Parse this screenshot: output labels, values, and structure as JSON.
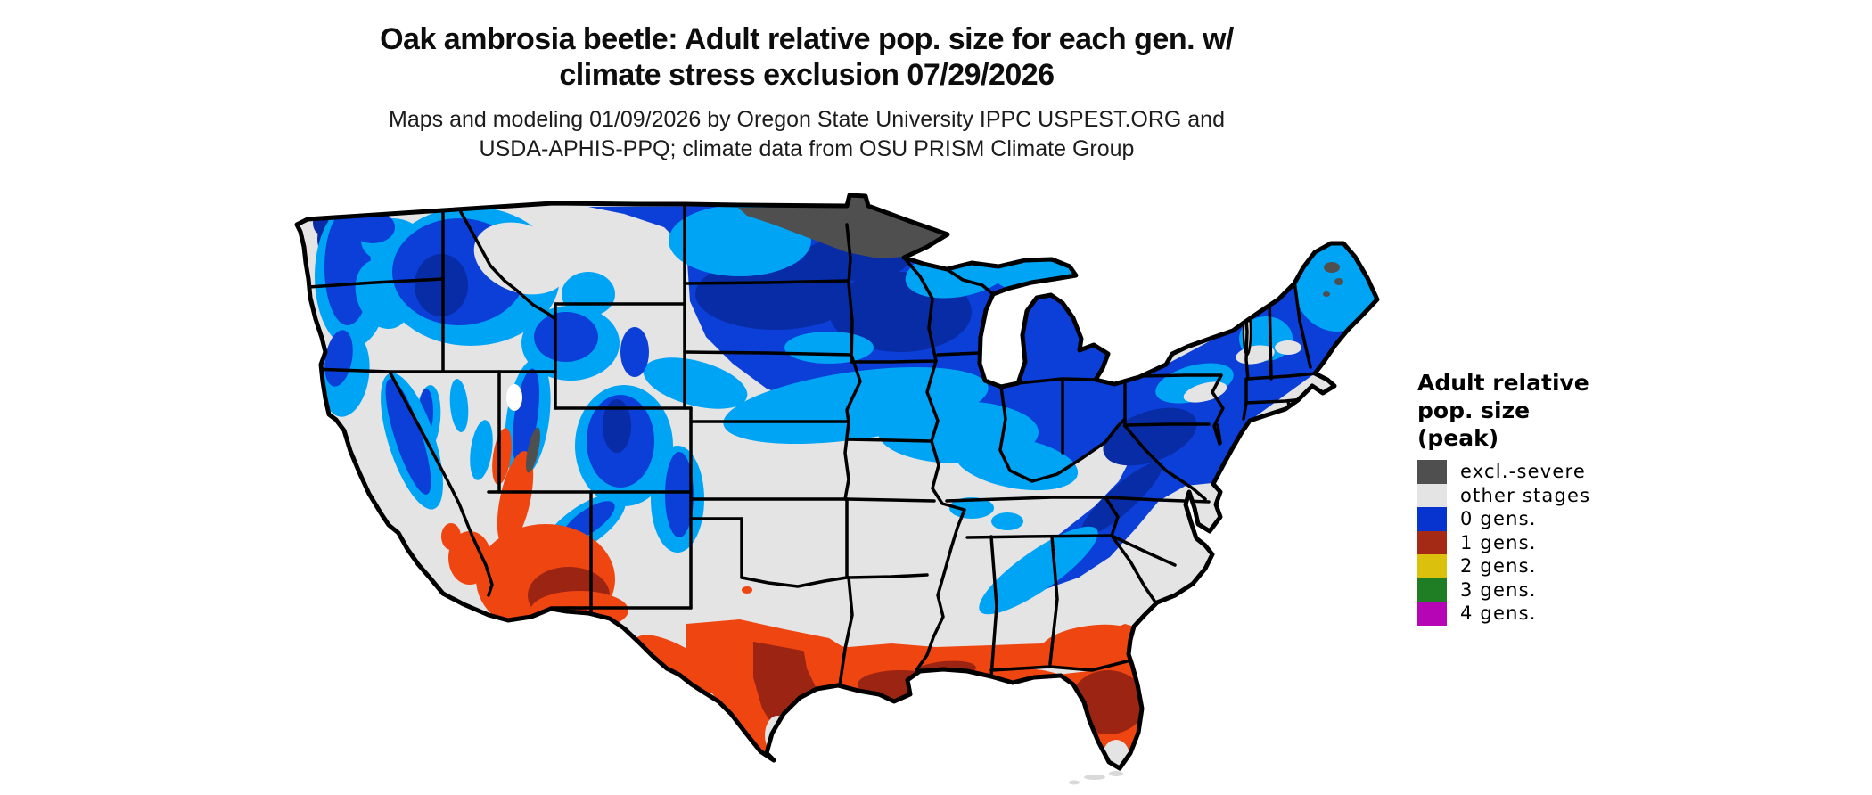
{
  "header": {
    "title_line1": "Oak ambrosia beetle: Adult relative pop. size for each gen. w/",
    "title_line2": "climate stress exclusion 07/29/2026",
    "subtitle_line1": "Maps and modeling 01/09/2026 by Oregon State University IPPC USPEST.ORG and",
    "subtitle_line2": "USDA-APHIS-PPQ; climate data from OSU PRISM Climate Group"
  },
  "legend": {
    "title_line1": "Adult relative",
    "title_line2": "pop. size",
    "title_line3": "(peak)",
    "items": [
      {
        "key": "excl-severe",
        "label": "excl.-severe",
        "color": "#4F4F4F"
      },
      {
        "key": "other-stages",
        "label": "other stages",
        "color": "#E4E4E4"
      },
      {
        "key": "gen-0",
        "label": "0 gens.",
        "color": "#0733CE"
      },
      {
        "key": "gen-1",
        "label": "1 gens.",
        "color": "#A52A15"
      },
      {
        "key": "gen-2",
        "label": "2 gens.",
        "color": "#DCC00E"
      },
      {
        "key": "gen-3",
        "label": "3 gens.",
        "color": "#1F7E24"
      },
      {
        "key": "gen-4",
        "label": "4 gens.",
        "color": "#B505B5"
      }
    ]
  },
  "map": {
    "description": "CONUS raster map: oak ambrosia beetle adult relative population size by generation; blue (0 gens.) across the north and mountain west, gray (other stages) across the central/southern interior, orange to dark red (1 gens.) along southern Texas, the Gulf Coast, Florida and southern Arizona, dark gray (excl.-severe) along the North Dakota / northern Minnesota border strip",
    "colors": {
      "land": "#E4E4E4",
      "exgray": "#4F4F4F",
      "blue": "#0B3FD8",
      "deep": "#082CA6",
      "cyan": "#00A4F4",
      "orange": "#EE4511",
      "dkred": "#9B2412",
      "water": "#FFFFFF",
      "border": "#000000"
    }
  }
}
